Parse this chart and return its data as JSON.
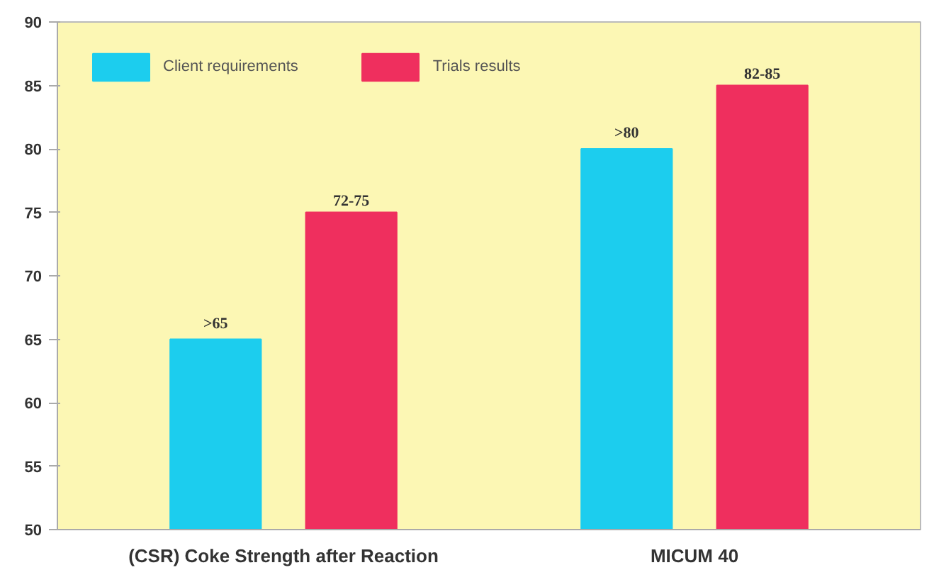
{
  "chart_data": {
    "type": "bar",
    "categories": [
      "(CSR) Coke Strength after Reaction",
      "MICUM 40"
    ],
    "series": [
      {
        "name": "Client requirements",
        "color": "#1ccdee",
        "values": [
          65,
          80
        ],
        "value_labels": [
          ">65",
          ">80"
        ]
      },
      {
        "name": "Trials results",
        "color": "#ef2f5e",
        "values": [
          75,
          85
        ],
        "value_labels": [
          "72-75",
          "82-85"
        ]
      }
    ],
    "ylim": [
      50,
      90
    ],
    "yticks": [
      50,
      55,
      60,
      65,
      70,
      75,
      80,
      85,
      90
    ],
    "grid": false,
    "legend": "top left"
  }
}
